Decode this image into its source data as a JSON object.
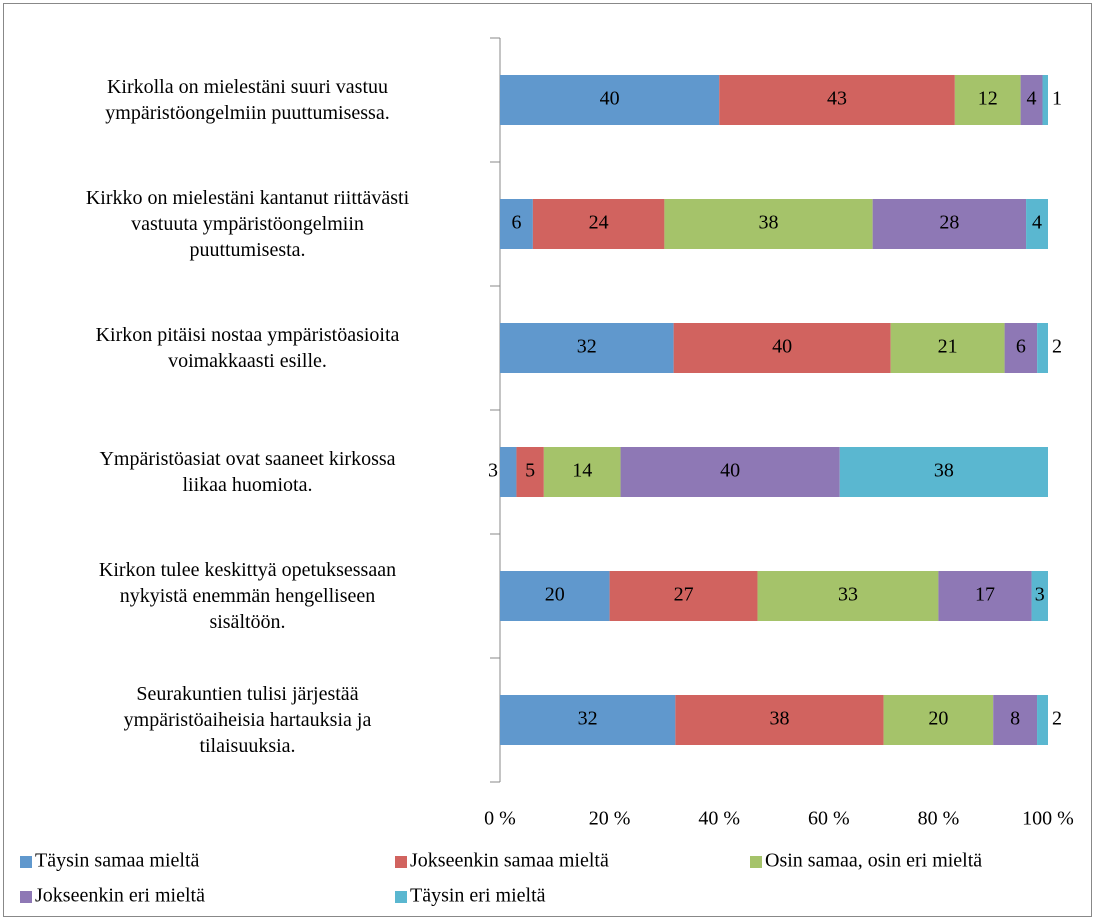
{
  "chart_data": {
    "type": "bar",
    "orientation": "horizontal",
    "stacked": "percent",
    "categories": [
      "Kirkolla on mielestäni suuri vastuu\nympäristöongelmiin puuttumisessa.",
      "Kirkko on mielestäni kantanut riittävästi\nvastuuta ympäristöongelmiin\npuuttumisesta.",
      "Kirkon pitäisi nostaa ympäristöasioita\nvoimakkaasti esille.",
      "Ympäristöasiat ovat saaneet kirkossa\nliikaa huomiota.",
      "Kirkon tulee keskittyä opetuksessaan\nnykyistä enemmän hengelliseen\nsisältöön.",
      "Seurakuntien tulisi järjestää\nympäristöaiheisia hartauksia ja\ntilaisuuksia."
    ],
    "series": [
      {
        "name": "Täysin samaa mieltä",
        "color": "#6098cd",
        "values": [
          40,
          6,
          32,
          3,
          20,
          32
        ]
      },
      {
        "name": "Jokseenkin samaa mieltä",
        "color": "#d1635f",
        "values": [
          43,
          24,
          40,
          5,
          27,
          38
        ]
      },
      {
        "name": "Osin samaa, osin eri mieltä",
        "color": "#a5c36a",
        "values": [
          12,
          38,
          21,
          14,
          33,
          20
        ]
      },
      {
        "name": "Jokseenkin eri mieltä",
        "color": "#8e78b5",
        "values": [
          4,
          28,
          6,
          40,
          17,
          8
        ]
      },
      {
        "name": "Täysin eri mieltä",
        "color": "#5ab7d0",
        "values": [
          1,
          4,
          2,
          38,
          3,
          2
        ]
      }
    ],
    "xlim": [
      0,
      100
    ],
    "xticks": [
      {
        "value": 0,
        "label": "0 %"
      },
      {
        "value": 20,
        "label": "20 %"
      },
      {
        "value": 40,
        "label": "40 %"
      },
      {
        "value": 60,
        "label": "60 %"
      },
      {
        "value": 80,
        "label": "80 %"
      },
      {
        "value": 100,
        "label": "100 %"
      }
    ],
    "grid": false,
    "legend": "bottom"
  }
}
